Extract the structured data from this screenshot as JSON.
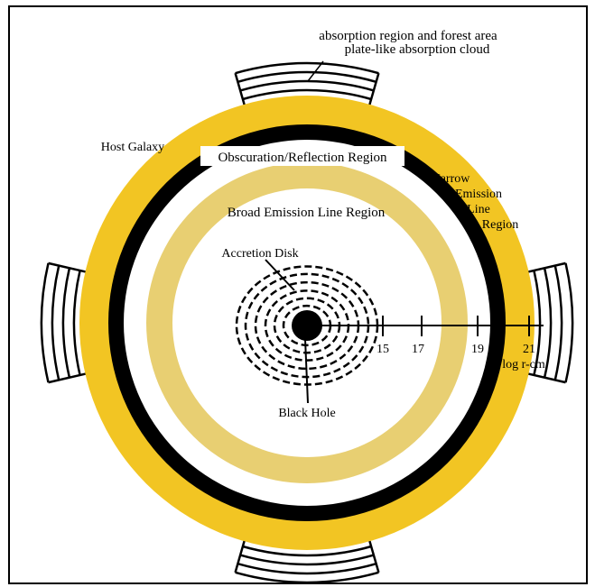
{
  "title_line1": "absorption region and forest area",
  "title_line2": "plate-like absorption cloud",
  "labels": {
    "host_galaxy": "Host Galaxy",
    "obscuration": "Obscuration/Reflection Region",
    "narrow_1": "Narrow",
    "narrow_2": "Emission",
    "narrow_3": "Line",
    "narrow_4": "Region",
    "broad": "Broad Emission Line Region",
    "accretion": "Accretion Disk",
    "black_hole": "Black Hole"
  },
  "axis": {
    "ticks": [
      "15",
      "17",
      "19",
      "21"
    ],
    "unit_label": "log r-cm"
  },
  "colors": {
    "host_galaxy": "#f2c523",
    "obscuration": "#000000",
    "broad_region": "#e8cf72",
    "background": "#ffffff",
    "line": "#000000"
  }
}
